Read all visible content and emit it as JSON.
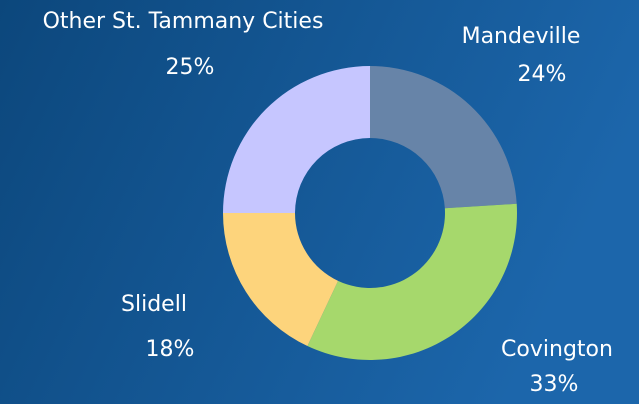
{
  "chart_data": {
    "type": "donut",
    "categories": [
      "Mandeville",
      "Covington",
      "Slidell",
      "Other St. Tammany Cities"
    ],
    "values": [
      24,
      33,
      18,
      25
    ],
    "value_labels": [
      "24%",
      "33%",
      "18%",
      "25%"
    ],
    "colors": [
      "#6784a8",
      "#a6d86c",
      "#fdd47c",
      "#c6c6ff"
    ]
  }
}
